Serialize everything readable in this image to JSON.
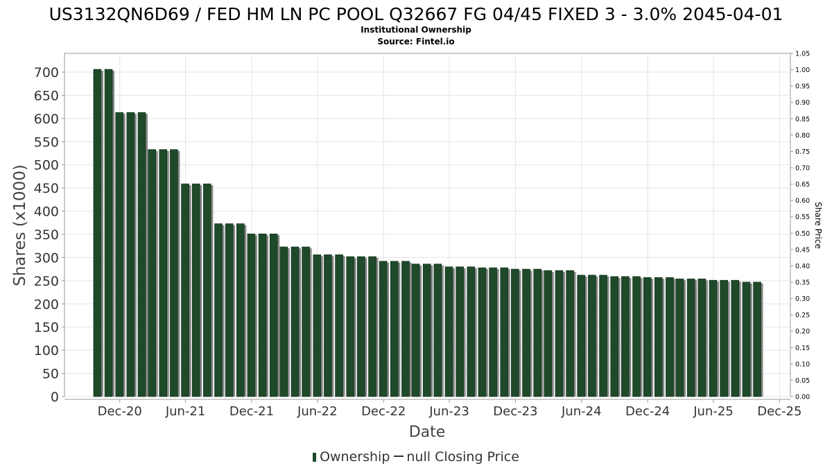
{
  "chart_data": {
    "type": "bar",
    "title": "US3132QN6D69 / FED HM LN PC POOL Q32667 FG 04/45 FIXED 3 - 3.0% 2045-04-01",
    "subtitle_lines": [
      "Institutional Ownership",
      "Source: Fintel.io"
    ],
    "xlabel": "Date",
    "ylabel": "Shares (x1000)",
    "ylabel_right": "Share Price",
    "ylim": [
      0,
      700
    ],
    "yticks": [
      0,
      50,
      100,
      150,
      200,
      250,
      300,
      350,
      400,
      450,
      500,
      550,
      600,
      650,
      700
    ],
    "ylim_right": [
      0,
      1.05
    ],
    "yticks_right": [
      "0.00",
      "0.05",
      "0.10",
      "0.15",
      "0.20",
      "0.25",
      "0.30",
      "0.35",
      "0.40",
      "0.45",
      "0.50",
      "0.55",
      "0.60",
      "0.65",
      "0.70",
      "0.75",
      "0.80",
      "0.85",
      "0.90",
      "0.95",
      "1.00",
      "1.05"
    ],
    "xlim": [
      "2020-07-01",
      "2025-12-31"
    ],
    "xticks": [
      {
        "date": "2020-12-01",
        "label": "Dec-20"
      },
      {
        "date": "2021-06-01",
        "label": "Jun-21"
      },
      {
        "date": "2021-12-01",
        "label": "Dec-21"
      },
      {
        "date": "2022-06-01",
        "label": "Jun-22"
      },
      {
        "date": "2022-12-01",
        "label": "Dec-22"
      },
      {
        "date": "2023-06-01",
        "label": "Jun-23"
      },
      {
        "date": "2023-12-01",
        "label": "Dec-23"
      },
      {
        "date": "2024-06-01",
        "label": "Jun-24"
      },
      {
        "date": "2024-12-01",
        "label": "Dec-24"
      },
      {
        "date": "2025-06-01",
        "label": "Jun-25"
      },
      {
        "date": "2025-12-01",
        "label": "Dec-25"
      }
    ],
    "grid": true,
    "legend_position": "bottom",
    "series": [
      {
        "name": "Ownership",
        "color": "#1e4a2a",
        "x": [
          "2020-09-30",
          "2020-10-31",
          "2020-11-30",
          "2020-12-31",
          "2021-01-31",
          "2021-02-28",
          "2021-03-31",
          "2021-04-30",
          "2021-05-31",
          "2021-06-30",
          "2021-07-31",
          "2021-08-31",
          "2021-09-30",
          "2021-10-31",
          "2021-11-30",
          "2021-12-31",
          "2022-01-31",
          "2022-02-28",
          "2022-03-31",
          "2022-04-30",
          "2022-05-31",
          "2022-06-30",
          "2022-07-31",
          "2022-08-31",
          "2022-09-30",
          "2022-10-31",
          "2022-11-30",
          "2022-12-31",
          "2023-01-31",
          "2023-02-28",
          "2023-03-31",
          "2023-04-30",
          "2023-05-31",
          "2023-06-30",
          "2023-07-31",
          "2023-08-31",
          "2023-09-30",
          "2023-10-31",
          "2023-11-30",
          "2023-12-31",
          "2024-01-31",
          "2024-02-29",
          "2024-03-31",
          "2024-04-30",
          "2024-05-31",
          "2024-06-30",
          "2024-07-31",
          "2024-08-31",
          "2024-09-30",
          "2024-10-31",
          "2024-11-30",
          "2024-12-31",
          "2025-01-31",
          "2025-02-28",
          "2025-03-31",
          "2025-04-30",
          "2025-05-31",
          "2025-06-30",
          "2025-07-31",
          "2025-08-31",
          "2025-09-30"
        ],
        "values": [
          706,
          706,
          613,
          613,
          613,
          533,
          533,
          533,
          459,
          459,
          459,
          373,
          373,
          373,
          351,
          351,
          351,
          323,
          323,
          323,
          306,
          306,
          306,
          302,
          302,
          302,
          292,
          292,
          292,
          286,
          286,
          286,
          280,
          280,
          280,
          278,
          278,
          278,
          275,
          275,
          275,
          272,
          272,
          272,
          262,
          262,
          262,
          259,
          259,
          259,
          257,
          257,
          257,
          254,
          254,
          254,
          251,
          251,
          251,
          247,
          247
        ]
      },
      {
        "name": "null Closing Price",
        "color": "#333333",
        "values": []
      }
    ]
  }
}
